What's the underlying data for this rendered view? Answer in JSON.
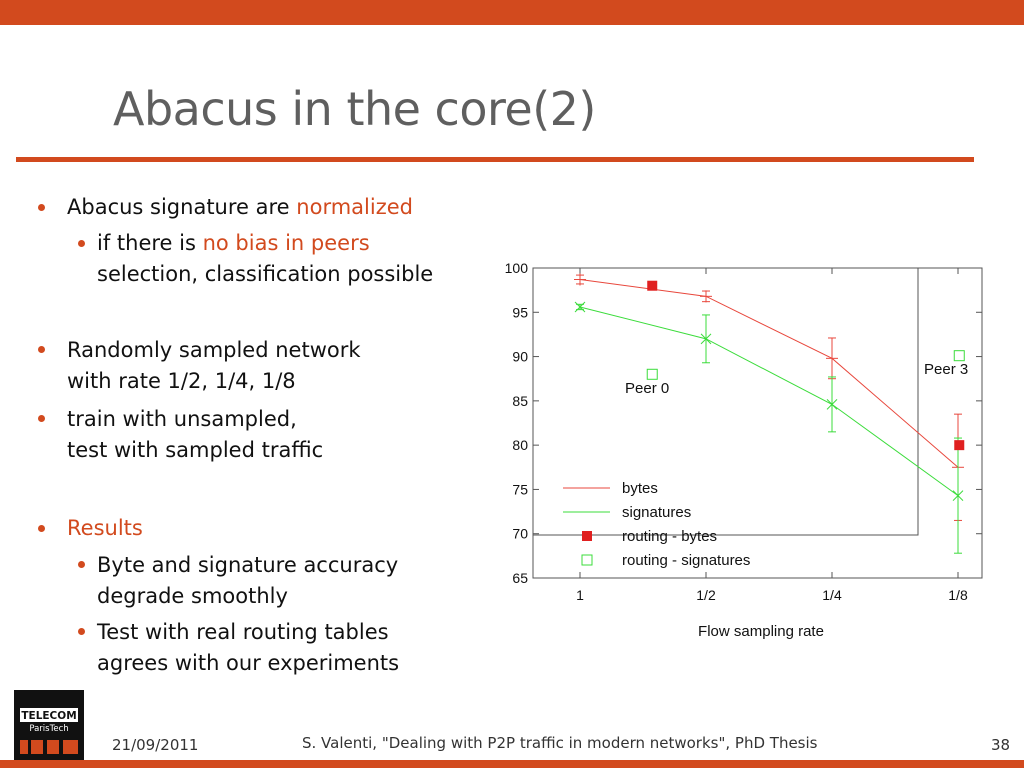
{
  "slide": {
    "title": "Abacus in the core(2)"
  },
  "bullets": {
    "b1_text": "Abacus signature are ",
    "b1_highlight": "normalized",
    "b1a_line1_text": "if there is ",
    "b1a_line1_highlight": "no bias in peers",
    "b1a_line2": "selection, classification possible",
    "b2_line1": "Randomly sampled network",
    "b2_line2": "with rate 1/2, 1/4, 1/8",
    "b3_line1": "train with unsampled,",
    "b3_line2": "test with sampled traffic",
    "b4": "Results",
    "b4a_line1": "Byte and signature accuracy",
    "b4a_line2": "degrade smoothly",
    "b4b_line1": "Test with real routing tables",
    "b4b_line2": "agrees with our experiments"
  },
  "chart_data": {
    "type": "line",
    "title": "",
    "xlabel": "Flow sampling rate",
    "ylabel": "",
    "categories": [
      "1",
      "1/2",
      "1/4",
      "1/8"
    ],
    "ylim": [
      65,
      100
    ],
    "yticks": [
      65,
      70,
      75,
      80,
      85,
      90,
      95,
      100
    ],
    "series": [
      {
        "name": "bytes",
        "color": "#e8473c",
        "x": [
          0,
          1,
          2,
          3
        ],
        "values": [
          98.7,
          96.8,
          89.8,
          77.5
        ],
        "err": [
          0.5,
          0.6,
          2.3,
          6.0
        ]
      },
      {
        "name": "signatures",
        "color": "#3bdc3b",
        "x": [
          0,
          1,
          2,
          3
        ],
        "values": [
          95.6,
          92.0,
          84.6,
          74.3
        ],
        "err": [
          0.3,
          2.7,
          3.1,
          6.5
        ]
      }
    ],
    "points": [
      {
        "name": "routing - bytes",
        "marker": "filled-square",
        "color": "#e02020",
        "data": [
          {
            "x": 0.56,
            "y": 98.0
          },
          {
            "x": 2.94,
            "y": 80.0
          }
        ]
      },
      {
        "name": "routing - signatures",
        "marker": "open-square",
        "color": "#3bdc3b",
        "data": [
          {
            "x": 0.56,
            "y": 88.0
          },
          {
            "x": 2.94,
            "y": 90.1
          }
        ]
      }
    ],
    "annotations": [
      "Peer 0",
      "Peer 3"
    ],
    "legend": [
      "bytes",
      "signatures",
      "routing - bytes",
      "routing - signatures"
    ]
  },
  "footer": {
    "date": "21/09/2011",
    "citation": "S. Valenti, \"Dealing with P2P traffic in modern networks\", PhD Thesis",
    "page": "38"
  },
  "logo": {
    "text": "TELECOM ParisTech"
  }
}
